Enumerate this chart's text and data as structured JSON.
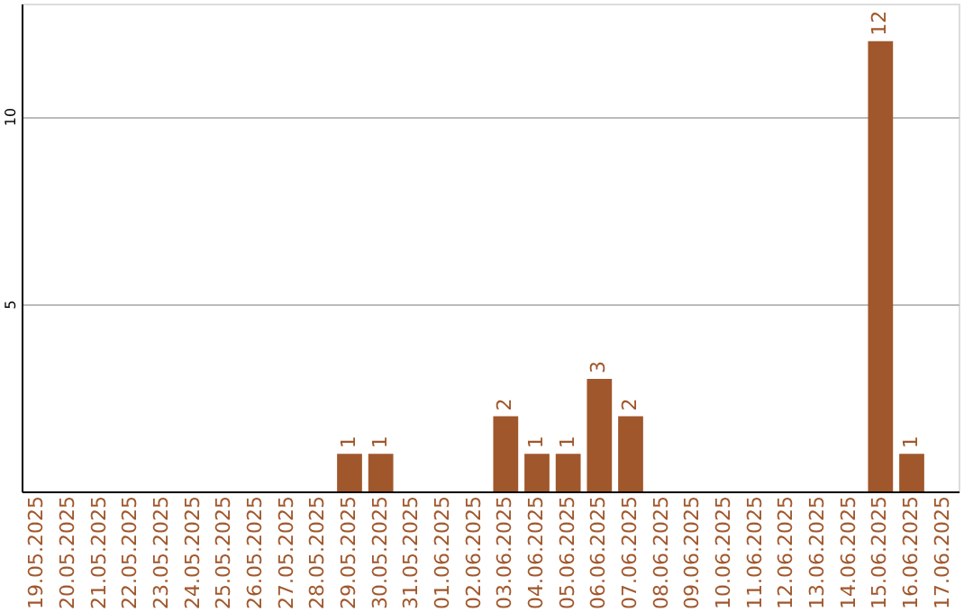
{
  "chart_data": {
    "type": "bar",
    "categories": [
      "19.05.2025",
      "20.05.2025",
      "21.05.2025",
      "22.05.2025",
      "23.05.2025",
      "24.05.2025",
      "25.05.2025",
      "26.05.2025",
      "27.05.2025",
      "28.05.2025",
      "29.05.2025",
      "30.05.2025",
      "31.05.2025",
      "01.06.2025",
      "02.06.2025",
      "03.06.2025",
      "04.06.2025",
      "05.06.2025",
      "06.06.2025",
      "07.06.2025",
      "08.06.2025",
      "09.06.2025",
      "10.06.2025",
      "11.06.2025",
      "12.06.2025",
      "13.06.2025",
      "14.06.2025",
      "15.06.2025",
      "16.06.2025",
      "17.06.2025"
    ],
    "values": [
      0,
      0,
      0,
      0,
      0,
      0,
      0,
      0,
      0,
      0,
      1,
      1,
      0,
      0,
      0,
      2,
      1,
      1,
      3,
      2,
      0,
      0,
      0,
      0,
      0,
      0,
      0,
      12,
      1,
      0
    ],
    "value_labels": [
      null,
      null,
      null,
      null,
      null,
      null,
      null,
      null,
      null,
      null,
      "1",
      "1",
      null,
      null,
      null,
      "2",
      "1",
      "1",
      "3",
      "2",
      null,
      null,
      null,
      null,
      null,
      null,
      null,
      "12",
      "1",
      null
    ],
    "color": "#a0572c",
    "ylim": [
      0,
      13
    ],
    "yticks": [
      5,
      10
    ],
    "grid": "y"
  }
}
